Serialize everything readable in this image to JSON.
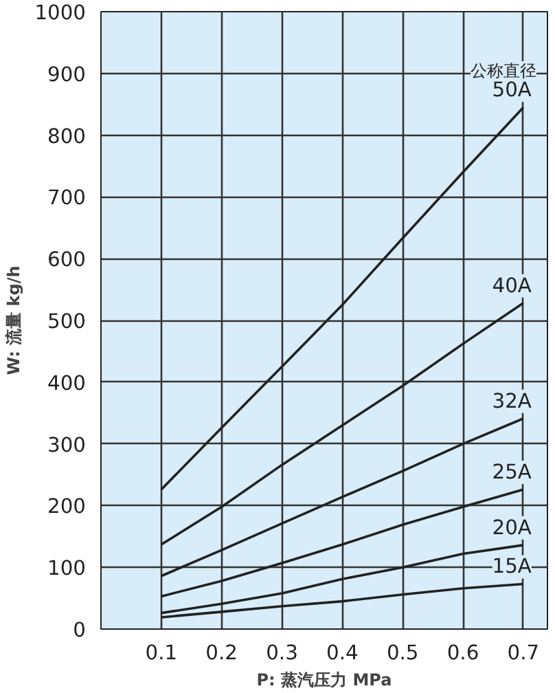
{
  "chart_data": {
    "type": "line",
    "xlabel": "P: 蒸汽压力 MPa",
    "ylabel": "W: 流量 kg/h",
    "x": [
      0.1,
      0.2,
      0.3,
      0.4,
      0.5,
      0.6,
      0.7
    ],
    "series": [
      {
        "name": "50A",
        "color": "#222222",
        "values": [
          226,
          326,
          425,
          525,
          633,
          740,
          845
        ]
      },
      {
        "name": "40A",
        "color": "#222222",
        "values": [
          137,
          198,
          266,
          330,
          394,
          462,
          528
        ]
      },
      {
        "name": "32A",
        "color": "#222222",
        "values": [
          86,
          128,
          171,
          214,
          256,
          300,
          341
        ]
      },
      {
        "name": "25A",
        "color": "#222222",
        "values": [
          53,
          78,
          107,
          137,
          169,
          198,
          226
        ]
      },
      {
        "name": "20A",
        "color": "#222222",
        "values": [
          26,
          41,
          58,
          81,
          100,
          122,
          136
        ]
      },
      {
        "name": "15A",
        "color": "#222222",
        "values": [
          19,
          28,
          37,
          45,
          56,
          66,
          73
        ]
      }
    ],
    "annotations": [
      "公称直径"
    ],
    "xlim": [
      0,
      0.74
    ],
    "ylim": [
      0,
      1000
    ],
    "xticks": [
      0.1,
      0.2,
      0.3,
      0.4,
      0.5,
      0.6,
      0.7
    ],
    "yticks": [
      0,
      100,
      200,
      300,
      400,
      500,
      600,
      700,
      800,
      900,
      1000
    ],
    "grid": true,
    "legend": false,
    "marker": "none",
    "line_style": "solid"
  }
}
